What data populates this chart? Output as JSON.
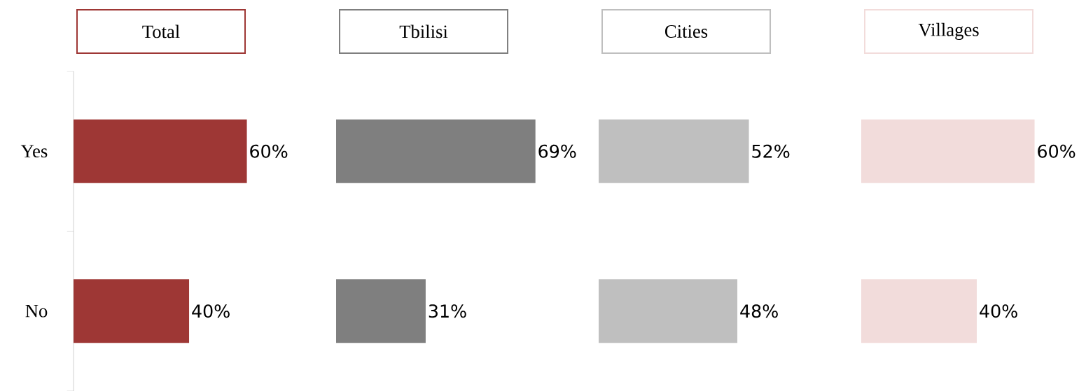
{
  "chart_data": [
    {
      "type": "bar",
      "orientation": "horizontal",
      "title": "Total",
      "categories": [
        "Yes",
        "No"
      ],
      "values": [
        60,
        40
      ],
      "value_labels": [
        "60%",
        "40%"
      ],
      "color": "#9e3735",
      "tick_labels": "y"
    },
    {
      "type": "bar",
      "orientation": "horizontal",
      "title": "Tbilisi",
      "categories": [
        null,
        null
      ],
      "values": [
        69,
        31
      ],
      "value_labels": [
        "69%",
        "31%"
      ],
      "color": "#7f7f7f",
      "tick_labels": false
    },
    {
      "type": "bar",
      "orientation": "horizontal",
      "title": "Cities",
      "categories": [
        null,
        null
      ],
      "values": [
        52,
        48
      ],
      "value_labels": [
        "52%",
        "48%"
      ],
      "color": "#bfbfbf",
      "tick_labels": false
    },
    {
      "type": "bar",
      "orientation": "horizontal",
      "title": "Villages",
      "categories": [
        null,
        null
      ],
      "values": [
        60,
        40
      ],
      "value_labels": [
        "60%",
        "40%"
      ],
      "color": "#f2dcdb",
      "tick_labels": false
    }
  ]
}
